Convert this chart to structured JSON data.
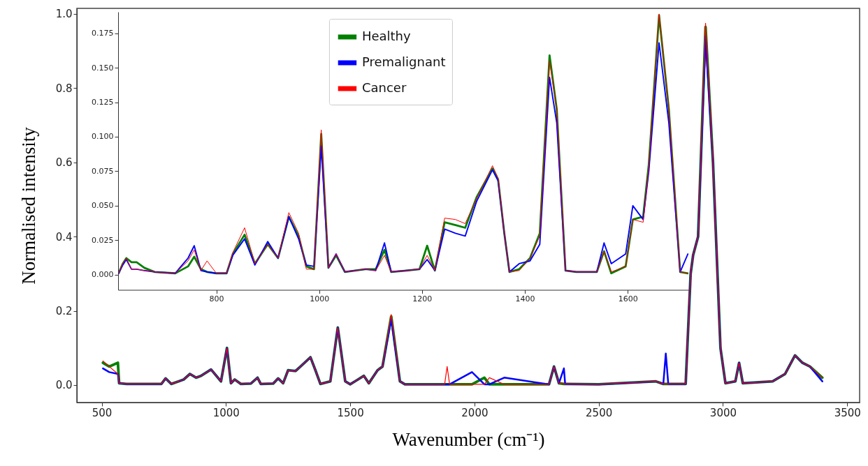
{
  "chart_data": [
    {
      "type": "line",
      "xlabel": "Wavenumber (cm⁻¹)",
      "ylabel": "Normalised intensity",
      "xlim": [
        400,
        3550
      ],
      "ylim": [
        -0.047,
        1.015
      ],
      "xticks": [
        500,
        1000,
        1500,
        2000,
        2500,
        3000,
        3500
      ],
      "yticks": [
        {
          "value": 0,
          "label": "0.0"
        },
        {
          "value": 0.2,
          "label": "0.2"
        },
        {
          "value": 0.4,
          "label": "0.4"
        },
        {
          "value": 0.6,
          "label": "0.6"
        },
        {
          "value": 0.8,
          "label": "0.8"
        },
        {
          "value": 1,
          "label": "1.0"
        }
      ],
      "legend": false,
      "x": [
        505,
        530,
        565,
        570,
        600,
        700,
        740,
        757,
        780,
        830,
        855,
        880,
        900,
        940,
        980,
        1004,
        1020,
        1035,
        1060,
        1100,
        1127,
        1140,
        1190,
        1210,
        1230,
        1250,
        1280,
        1300,
        1340,
        1360,
        1380,
        1420,
        1450,
        1480,
        1500,
        1555,
        1575,
        1610,
        1630,
        1665,
        1700,
        1720,
        1880,
        1890,
        1900,
        1990,
        2040,
        2060,
        2120,
        2300,
        2320,
        2340,
        2360,
        2365,
        2370,
        2500,
        2730,
        2760,
        2770,
        2780,
        2850,
        2870,
        2880,
        2900,
        2930,
        2960,
        2990,
        3010,
        3050,
        3065,
        3080,
        3200,
        3250,
        3290,
        3320,
        3350,
        3400
      ],
      "series": [
        {
          "color": "#008000",
          "values": [
            0.06,
            0.05,
            0.06,
            0.005,
            0.003,
            0.003,
            0.003,
            0.018,
            0.003,
            0.015,
            0.03,
            0.02,
            0.025,
            0.042,
            0.01,
            0.1,
            0.005,
            0.015,
            0.003,
            0.004,
            0.02,
            0.003,
            0.004,
            0.018,
            0.005,
            0.04,
            0.038,
            0.05,
            0.075,
            0.04,
            0.003,
            0.01,
            0.155,
            0.01,
            0.002,
            0.025,
            0.005,
            0.04,
            0.05,
            0.185,
            0.01,
            0.002,
            0.002,
            0.002,
            0.002,
            0.002,
            0.02,
            0.002,
            0.002,
            0.002,
            0.05,
            0.005,
            0.003,
            0.003,
            0.003,
            0.002,
            0.01,
            0.003,
            0.003,
            0.003,
            0.003,
            0.3,
            0.35,
            0.4,
            0.965,
            0.6,
            0.1,
            0.005,
            0.01,
            0.06,
            0.005,
            0.01,
            0.03,
            0.08,
            0.06,
            0.05,
            0.02
          ]
        },
        {
          "color": "#0000ff",
          "values": [
            0.045,
            0.035,
            0.03,
            0.005,
            0.003,
            0.003,
            0.003,
            0.018,
            0.003,
            0.015,
            0.03,
            0.02,
            0.025,
            0.042,
            0.01,
            0.1,
            0.005,
            0.015,
            0.003,
            0.004,
            0.02,
            0.003,
            0.004,
            0.018,
            0.005,
            0.04,
            0.038,
            0.05,
            0.075,
            0.04,
            0.003,
            0.01,
            0.155,
            0.01,
            0.002,
            0.025,
            0.005,
            0.04,
            0.05,
            0.178,
            0.01,
            0.002,
            0.002,
            0.002,
            0.002,
            0.035,
            0.002,
            0.002,
            0.02,
            0.002,
            0.05,
            0.005,
            0.045,
            0.003,
            0.003,
            0.002,
            0.01,
            0.003,
            0.085,
            0.003,
            0.003,
            0.3,
            0.35,
            0.4,
            0.94,
            0.6,
            0.1,
            0.005,
            0.01,
            0.06,
            0.005,
            0.01,
            0.03,
            0.08,
            0.06,
            0.05,
            0.01
          ]
        },
        {
          "color": "#ff0000",
          "values": [
            0.065,
            0.05,
            0.03,
            0.005,
            0.003,
            0.003,
            0.003,
            0.018,
            0.003,
            0.015,
            0.03,
            0.02,
            0.025,
            0.042,
            0.01,
            0.1,
            0.005,
            0.015,
            0.003,
            0.004,
            0.02,
            0.003,
            0.004,
            0.018,
            0.005,
            0.04,
            0.038,
            0.05,
            0.075,
            0.04,
            0.003,
            0.01,
            0.155,
            0.01,
            0.002,
            0.025,
            0.005,
            0.04,
            0.05,
            0.19,
            0.01,
            0.002,
            0.002,
            0.05,
            0.002,
            0.002,
            0.002,
            0.02,
            0.002,
            0.002,
            0.05,
            0.005,
            0.003,
            0.003,
            0.003,
            0.002,
            0.01,
            0.003,
            0.003,
            0.003,
            0.003,
            0.3,
            0.35,
            0.4,
            0.975,
            0.6,
            0.1,
            0.005,
            0.01,
            0.06,
            0.005,
            0.01,
            0.03,
            0.08,
            0.06,
            0.05,
            0.02
          ]
        }
      ]
    },
    {
      "type": "line",
      "xlim": [
        609,
        1718
      ],
      "ylim": [
        -0.011,
        0.1905
      ],
      "xticks": [
        800,
        1000,
        1200,
        1400,
        1600
      ],
      "yticks": [
        {
          "value": 0,
          "label": "0.000"
        },
        {
          "value": 0.025,
          "label": "0.025"
        },
        {
          "value": 0.05,
          "label": "0.050"
        },
        {
          "value": 0.075,
          "label": "0.075"
        },
        {
          "value": 0.1,
          "label": "0.100"
        },
        {
          "value": 0.125,
          "label": "0.125"
        },
        {
          "value": 0.15,
          "label": "0.150"
        },
        {
          "value": 0.175,
          "label": "0.175"
        }
      ],
      "legend": "top",
      "x": [
        610,
        618,
        625,
        635,
        645,
        660,
        680,
        720,
        745,
        757,
        770,
        782,
        800,
        820,
        832,
        855,
        875,
        900,
        920,
        941,
        960,
        975,
        990,
        1004,
        1018,
        1033,
        1050,
        1090,
        1110,
        1127,
        1140,
        1170,
        1195,
        1210,
        1225,
        1244,
        1265,
        1284,
        1306,
        1337,
        1348,
        1360,
        1370,
        1389,
        1410,
        1429,
        1448,
        1462,
        1479,
        1500,
        1540,
        1554,
        1568,
        1596,
        1610,
        1630,
        1641,
        1661,
        1680,
        1702,
        1717
      ],
      "series": [
        {
          "name": "Healthy",
          "color": "#008000",
          "values": [
            0.001,
            0.008,
            0.012,
            0.009,
            0.009,
            0.005,
            0.002,
            0.001,
            0.006,
            0.013,
            0.004,
            0.002,
            0.001,
            0.001,
            0.015,
            0.029,
            0.008,
            0.022,
            0.012,
            0.042,
            0.028,
            0.006,
            0.004,
            0.102,
            0.005,
            0.014,
            0.002,
            0.004,
            0.004,
            0.018,
            0.002,
            0.003,
            0.004,
            0.021,
            0.003,
            0.038,
            0.036,
            0.034,
            0.056,
            0.077,
            0.069,
            0.03,
            0.002,
            0.004,
            0.012,
            0.03,
            0.159,
            0.12,
            0.003,
            0.002,
            0.002,
            0.017,
            0.001,
            0.006,
            0.04,
            0.042,
            0.08,
            0.188,
            0.12,
            0.002,
            0.001
          ]
        },
        {
          "name": "Premalignant",
          "color": "#0000ff",
          "values": [
            0.001,
            0.007,
            0.011,
            0.004,
            0.004,
            0.003,
            0.002,
            0.001,
            0.012,
            0.021,
            0.003,
            0.002,
            0.001,
            0.001,
            0.014,
            0.026,
            0.007,
            0.024,
            0.012,
            0.042,
            0.026,
            0.007,
            0.006,
            0.093,
            0.005,
            0.015,
            0.002,
            0.004,
            0.003,
            0.023,
            0.002,
            0.003,
            0.004,
            0.011,
            0.003,
            0.033,
            0.03,
            0.028,
            0.053,
            0.076,
            0.068,
            0.03,
            0.002,
            0.008,
            0.01,
            0.022,
            0.143,
            0.11,
            0.003,
            0.002,
            0.002,
            0.023,
            0.008,
            0.015,
            0.05,
            0.04,
            0.075,
            0.168,
            0.11,
            0.002,
            0.015
          ]
        },
        {
          "name": "Cancer",
          "color": "#ff0000",
          "values": [
            0.001,
            0.008,
            0.012,
            0.004,
            0.004,
            0.003,
            0.002,
            0.001,
            0.01,
            0.018,
            0.003,
            0.01,
            0.001,
            0.001,
            0.016,
            0.034,
            0.008,
            0.022,
            0.012,
            0.045,
            0.03,
            0.004,
            0.004,
            0.105,
            0.005,
            0.015,
            0.002,
            0.004,
            0.003,
            0.014,
            0.002,
            0.003,
            0.004,
            0.014,
            0.003,
            0.041,
            0.04,
            0.037,
            0.055,
            0.079,
            0.07,
            0.03,
            0.002,
            0.003,
            0.012,
            0.028,
            0.155,
            0.12,
            0.003,
            0.002,
            0.002,
            0.017,
            0.002,
            0.006,
            0.04,
            0.038,
            0.078,
            0.189,
            0.12,
            0.002,
            0.001
          ]
        }
      ]
    }
  ]
}
